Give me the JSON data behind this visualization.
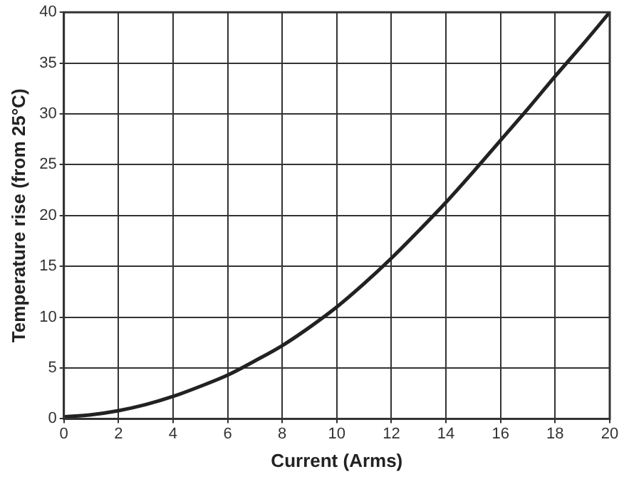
{
  "chart_data": {
    "type": "line",
    "xlabel": "Current (Arms)",
    "ylabel": "Temperature rise (from 25°C)",
    "series": [
      {
        "color": "#222222",
        "x": [
          0,
          1,
          2,
          3,
          4,
          5,
          6,
          7,
          8,
          9,
          10,
          11,
          12,
          13,
          14,
          15,
          16,
          17,
          18,
          19,
          20
        ],
        "values": [
          0.2,
          0.4,
          0.8,
          1.4,
          2.2,
          3.2,
          4.3,
          5.7,
          7.2,
          9,
          11,
          13.3,
          15.8,
          18.5,
          21.3,
          24.3,
          27.4,
          30.5,
          33.7,
          36.8,
          40
        ]
      }
    ],
    "xlim": [
      0,
      20
    ],
    "xticks": [
      0,
      2,
      4,
      6,
      8,
      10,
      12,
      14,
      16,
      18,
      20
    ],
    "ylim": [
      0,
      40
    ],
    "yticks": [
      0,
      5,
      10,
      15,
      20,
      25,
      30,
      35,
      40
    ],
    "grid": true,
    "legend": false,
    "marker": "none",
    "line_style": "solid"
  }
}
